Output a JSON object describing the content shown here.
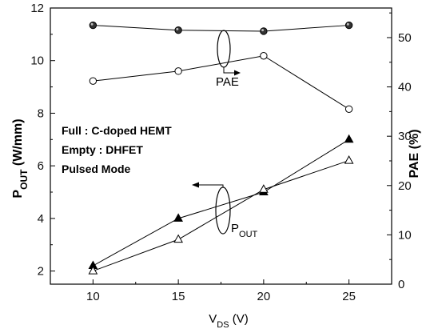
{
  "chart_data": {
    "type": "line",
    "x": [
      10,
      15,
      20,
      25
    ],
    "xlim": [
      7.5,
      27.5
    ],
    "xticks": [
      10,
      15,
      20,
      25
    ],
    "x_label": {
      "main": "V",
      "sub": "DS",
      "tail": " (V)"
    },
    "left_axis": {
      "label": {
        "main": "P",
        "sub": "OUT",
        "tail": " (W/mm)"
      },
      "ylim": [
        1.5,
        12
      ],
      "ticks": [
        2,
        4,
        6,
        8,
        10,
        12
      ]
    },
    "right_axis": {
      "label": "PAE (%)",
      "ylim": [
        0,
        56
      ],
      "ticks": [
        0,
        10,
        20,
        30,
        40,
        50
      ]
    },
    "series": [
      {
        "axis": "right",
        "marker": "circle",
        "fill": "half",
        "values": [
          52.5,
          51.5,
          51.3,
          52.5
        ]
      },
      {
        "axis": "right",
        "marker": "circle",
        "fill": "open",
        "values": [
          41.2,
          43.2,
          46.3,
          35.5
        ]
      },
      {
        "axis": "left",
        "marker": "triangle",
        "fill": "solid",
        "values": [
          2.2,
          4.0,
          5.0,
          7.0
        ]
      },
      {
        "axis": "left",
        "marker": "triangle",
        "fill": "open",
        "values": [
          2.0,
          3.2,
          5.1,
          6.2
        ]
      }
    ],
    "annotations": {
      "pae": "PAE",
      "pout": {
        "main": "P",
        "sub": "OUT"
      },
      "legend_notes": [
        "Full : C-doped HEMT",
        "Empty : DHFET",
        "Pulsed Mode"
      ]
    },
    "grid": false
  }
}
